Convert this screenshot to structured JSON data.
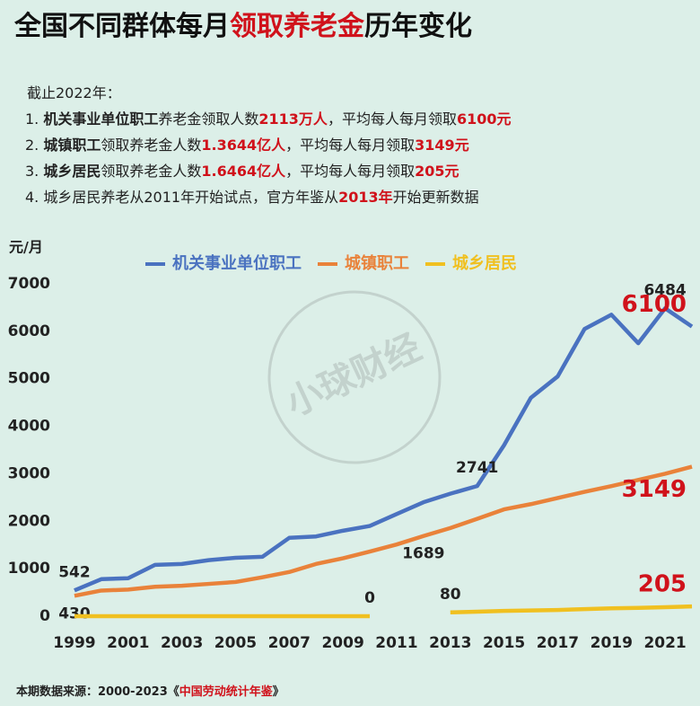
{
  "chart_data": {
    "type": "line",
    "title": [
      {
        "text": "全国不同群体每月",
        "style": "plain"
      },
      {
        "text": "领取养老金",
        "style": "red"
      },
      {
        "text": "历年变化",
        "style": "plain"
      }
    ],
    "notes": [
      [
        {
          "text": "截止2022年：",
          "style": "plain"
        }
      ],
      [
        {
          "text": "1. ",
          "style": "plain"
        },
        {
          "text": "机关事业单位职工",
          "style": "bold"
        },
        {
          "text": "养老金领取人数",
          "style": "plain"
        },
        {
          "text": "2113万人",
          "style": "red"
        },
        {
          "text": "，平均每人每月领取",
          "style": "plain"
        },
        {
          "text": "6100元",
          "style": "red"
        }
      ],
      [
        {
          "text": "2. ",
          "style": "plain"
        },
        {
          "text": "城镇职工",
          "style": "bold"
        },
        {
          "text": "领取养老金人数",
          "style": "plain"
        },
        {
          "text": "1.3644亿人",
          "style": "red"
        },
        {
          "text": "，平均每人每月领取",
          "style": "plain"
        },
        {
          "text": "3149元",
          "style": "red"
        }
      ],
      [
        {
          "text": "3. ",
          "style": "plain"
        },
        {
          "text": "城乡居民",
          "style": "bold"
        },
        {
          "text": "领取养老金人数",
          "style": "plain"
        },
        {
          "text": "1.6464亿人",
          "style": "red"
        },
        {
          "text": "，平均每人每月领取",
          "style": "plain"
        },
        {
          "text": "205元",
          "style": "red"
        }
      ],
      [
        {
          "text": "4. 城乡居民养老从2011年开始试点，官方年鉴从",
          "style": "plain"
        },
        {
          "text": "2013年",
          "style": "red"
        },
        {
          "text": "开始更新数据",
          "style": "plain"
        }
      ]
    ],
    "y_label": "元/月",
    "watermark": "小球财经",
    "source": [
      {
        "text": "本期数据来源：2000-2023《",
        "style": "plain"
      },
      {
        "text": "中国劳动统计年鉴",
        "style": "red"
      },
      {
        "text": "》",
        "style": "plain"
      }
    ],
    "x": [
      1999,
      2000,
      2001,
      2002,
      2003,
      2004,
      2005,
      2006,
      2007,
      2008,
      2009,
      2010,
      2011,
      2012,
      2013,
      2014,
      2015,
      2016,
      2017,
      2018,
      2019,
      2020,
      2021,
      2022
    ],
    "xlim": [
      1998.5,
      2022.3
    ],
    "xticks": [
      1999,
      2001,
      2003,
      2005,
      2007,
      2009,
      2011,
      2013,
      2015,
      2017,
      2019,
      2021
    ],
    "ylim": [
      0,
      7000
    ],
    "yticks": [
      0,
      1000,
      2000,
      3000,
      4000,
      5000,
      6000,
      7000
    ],
    "series": [
      {
        "name": "机关事业单位职工",
        "color": "#4a72c0",
        "values": [
          542,
          780,
          800,
          1080,
          1100,
          1180,
          1230,
          1250,
          1650,
          1680,
          1800,
          1900,
          2150,
          2400,
          2580,
          2741,
          3600,
          4600,
          5050,
          6050,
          6350,
          5750,
          6484,
          6100
        ],
        "value_labels": [
          "542",
          null,
          null,
          null,
          null,
          null,
          null,
          null,
          null,
          null,
          null,
          null,
          null,
          null,
          null,
          "2741",
          null,
          null,
          null,
          null,
          null,
          null,
          "6484",
          "6100"
        ]
      },
      {
        "name": "城镇职工",
        "color": "#e9823a",
        "values": [
          430,
          540,
          560,
          620,
          640,
          680,
          720,
          820,
          930,
          1100,
          1220,
          1360,
          1510,
          1689,
          1856,
          2050,
          2250,
          2360,
          2490,
          2620,
          2740,
          2870,
          3000,
          3149
        ],
        "value_labels": [
          "430",
          null,
          null,
          null,
          null,
          null,
          null,
          null,
          null,
          null,
          null,
          null,
          null,
          "1689",
          null,
          null,
          null,
          null,
          null,
          null,
          null,
          null,
          null,
          "3149"
        ]
      },
      {
        "name": "城乡居民",
        "color": "#f0c020",
        "values": [
          0,
          0,
          0,
          0,
          0,
          0,
          0,
          0,
          0,
          0,
          0,
          0,
          null,
          null,
          80,
          95,
          110,
          120,
          130,
          150,
          165,
          175,
          190,
          205
        ],
        "value_labels": [
          null,
          null,
          null,
          null,
          null,
          null,
          null,
          null,
          null,
          null,
          null,
          "0",
          null,
          null,
          "80",
          null,
          null,
          null,
          null,
          null,
          null,
          null,
          null,
          "205"
        ]
      }
    ],
    "label_side": [
      "above",
      "below",
      "above"
    ]
  }
}
